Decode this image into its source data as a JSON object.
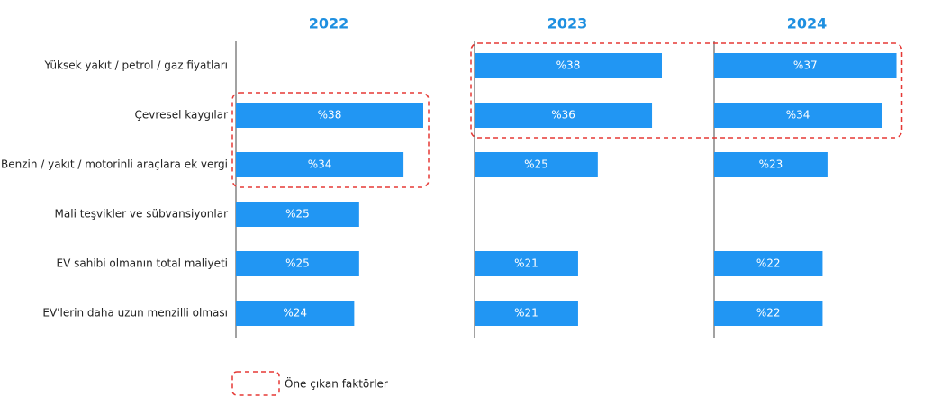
{
  "chart_data": {
    "type": "bar",
    "orientation": "horizontal",
    "categories": [
      "Yüksek yakıt / petrol / gaz fiyatları",
      "Çevresel kaygılar",
      "Benzin / yakıt / motorinli araçlara ek vergi",
      "Mali teşvikler ve sübvansiyonlar",
      "EV sahibi olmanın total maliyeti",
      "EV'lerin daha uzun menzilli olması"
    ],
    "xlim": [
      0,
      38
    ],
    "series": [
      {
        "name": "2022",
        "color": "#2196f3",
        "values": [
          null,
          38,
          34,
          25,
          25,
          24
        ],
        "value_labels": [
          null,
          "%38",
          "%34",
          "%25",
          "%25",
          "%24"
        ],
        "highlight": [
          1,
          2
        ]
      },
      {
        "name": "2023",
        "color": "#2196f3",
        "values": [
          38,
          36,
          25,
          null,
          21,
          21
        ],
        "value_labels": [
          "%38",
          "%36",
          "%25",
          null,
          "%21",
          "%21"
        ],
        "highlight": [
          0,
          1
        ]
      },
      {
        "name": "2024",
        "color": "#2196f3",
        "values": [
          37,
          34,
          23,
          null,
          22,
          22
        ],
        "value_labels": [
          "%37",
          "%34",
          "%23",
          null,
          "%22",
          "%22"
        ],
        "highlight": [
          0,
          1
        ]
      }
    ],
    "highlight_label": "Öne çıkan faktörler",
    "highlight_color": "#e53935",
    "title_color": "#1e8fe0"
  }
}
